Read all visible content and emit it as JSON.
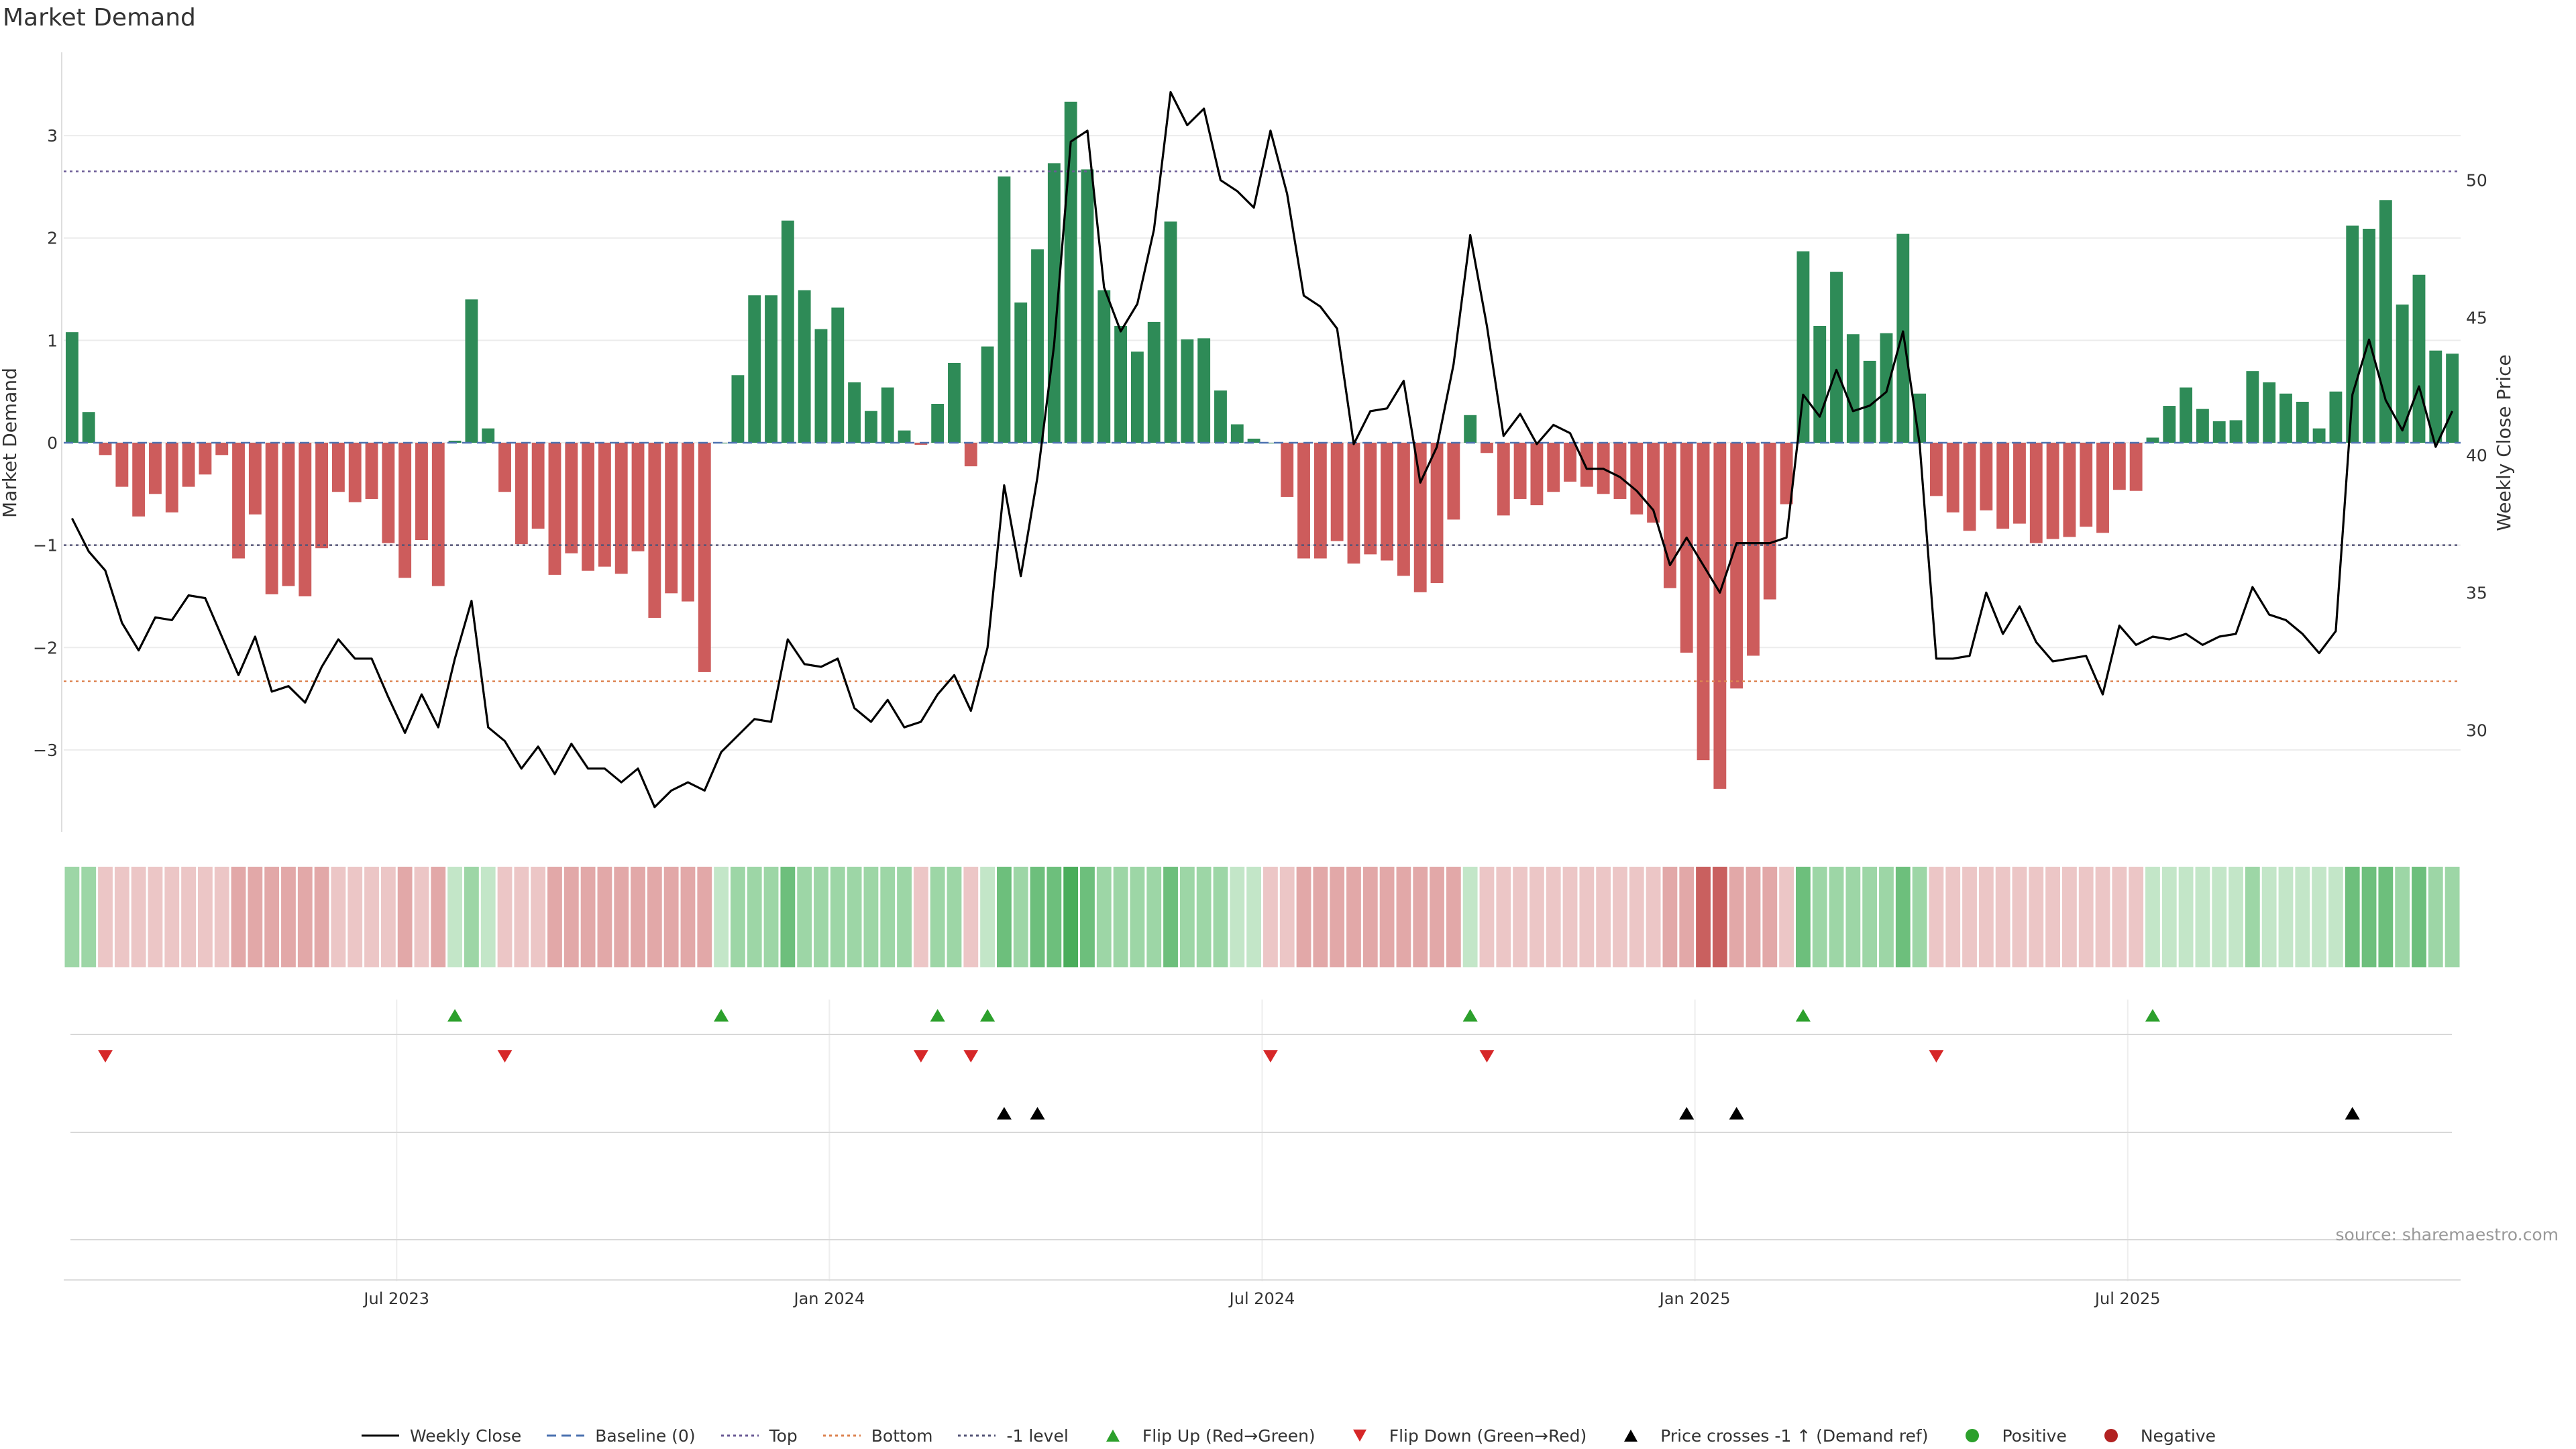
{
  "chart_data": {
    "type": "bar",
    "title": "Market Demand",
    "ylabel": "Market Demand",
    "y2label": "Weekly Close Price",
    "source": "source: sharemaestro.com",
    "ylim": [
      -3.8,
      3.8
    ],
    "y2lim": [
      26.3,
      54.6
    ],
    "yticks": [
      3,
      2,
      1,
      0,
      -1,
      -2,
      -3
    ],
    "ytick_labels": [
      "3",
      "2",
      "1",
      "0",
      "−1",
      "−2",
      "−3"
    ],
    "y2ticks": [
      50,
      45,
      40,
      35,
      30
    ],
    "ytick2_labels": [
      "50",
      "45",
      "40",
      "35",
      "30"
    ],
    "x_labels": [
      "Jul 2023",
      "Jan 2024",
      "Jul 2024",
      "Jan 2025",
      "Jul 2025"
    ],
    "x_label_weeks": [
      20,
      46,
      72,
      98,
      124
    ],
    "levels": {
      "top": 2.65,
      "bottom": -2.33,
      "minus_one": -1
    },
    "demand": [
      1.08,
      0.3,
      -0.12,
      -0.43,
      -0.72,
      -0.5,
      -0.68,
      -0.43,
      -0.31,
      -0.12,
      -1.13,
      -0.7,
      -1.48,
      -1.4,
      -1.5,
      -1.03,
      -0.48,
      -0.58,
      -0.55,
      -0.98,
      -1.32,
      -0.95,
      -1.4,
      0.02,
      1.4,
      0.14,
      -0.48,
      -0.99,
      -0.84,
      -1.29,
      -1.08,
      -1.25,
      -1.21,
      -1.28,
      -1.06,
      -1.71,
      -1.47,
      -1.55,
      -2.24,
      0,
      0.66,
      1.44,
      1.44,
      2.17,
      1.49,
      1.11,
      1.32,
      0.59,
      0.31,
      0.54,
      0.12,
      -0.02,
      0.38,
      0.78,
      -0.23,
      0.94,
      2.6,
      1.37,
      1.89,
      2.73,
      3.33,
      2.67,
      1.49,
      1.14,
      0.89,
      1.18,
      2.16,
      1.01,
      1.02,
      0.51,
      0.18,
      0.04,
      0,
      -0.53,
      -1.13,
      -1.13,
      -0.96,
      -1.18,
      -1.09,
      -1.15,
      -1.3,
      -1.46,
      -1.37,
      -0.75,
      0.27,
      -0.1,
      -0.71,
      -0.55,
      -0.61,
      -0.48,
      -0.38,
      -0.43,
      -0.5,
      -0.55,
      -0.7,
      -0.78,
      -1.42,
      -2.05,
      -3.1,
      -3.38,
      -2.4,
      -2.08,
      -1.53,
      -0.6,
      1.87,
      1.14,
      1.67,
      1.06,
      0.8,
      1.07,
      2.04,
      0.48,
      -0.52,
      -0.68,
      -0.86,
      -0.66,
      -0.84,
      -0.79,
      -0.98,
      -0.94,
      -0.92,
      -0.82,
      -0.88,
      -0.46,
      -0.47,
      0.05,
      0.36,
      0.54,
      0.33,
      0.21,
      0.22,
      0.7,
      0.59,
      0.48,
      0.4,
      0.14,
      0.5,
      2.12,
      2.09,
      2.37,
      1.35,
      1.64,
      0.9,
      0.87
    ],
    "close": [
      37.7,
      36.5,
      35.8,
      33.9,
      32.9,
      34.1,
      34.0,
      34.9,
      34.8,
      33.4,
      32.0,
      33.4,
      31.4,
      31.6,
      31.0,
      32.3,
      33.3,
      32.6,
      32.6,
      31.2,
      29.9,
      31.3,
      30.1,
      32.6,
      34.7,
      30.1,
      29.6,
      28.6,
      29.4,
      28.4,
      29.5,
      28.6,
      28.6,
      28.1,
      28.6,
      27.2,
      27.8,
      28.1,
      27.8,
      29.2,
      29.8,
      30.4,
      30.3,
      33.3,
      32.4,
      32.3,
      32.6,
      30.8,
      30.3,
      31.1,
      30.1,
      30.3,
      31.3,
      32.0,
      30.7,
      33.0,
      38.9,
      35.6,
      39.2,
      44.0,
      51.4,
      51.8,
      46.1,
      44.5,
      45.5,
      48.2,
      53.2,
      52.0,
      52.6,
      50.0,
      49.6,
      49.0,
      51.8,
      49.5,
      45.8,
      45.4,
      44.6,
      40.4,
      41.6,
      41.7,
      42.7,
      39.0,
      40.3,
      43.3,
      48.0,
      44.7,
      40.7,
      41.5,
      40.4,
      41.1,
      40.8,
      39.5,
      39.5,
      39.2,
      38.7,
      38.0,
      36.0,
      37.0,
      36.0,
      35.0,
      36.8,
      36.8,
      36.8,
      37.0,
      42.2,
      41.4,
      43.1,
      41.6,
      41.8,
      42.3,
      44.5,
      40.4,
      32.6,
      32.6,
      32.7,
      35.0,
      33.5,
      34.5,
      33.2,
      32.5,
      32.6,
      32.7,
      31.3,
      33.8,
      33.1,
      33.4,
      33.3,
      33.5,
      33.1,
      33.4,
      33.5,
      35.2,
      34.2,
      34.0,
      33.5,
      32.8,
      33.6,
      42.2,
      44.2,
      42.0,
      40.9,
      42.5,
      40.3,
      41.6
    ],
    "heat": [
      "pg",
      "pg",
      "lr",
      "lr",
      "lr",
      "lr",
      "lr",
      "lr",
      "lr",
      "lr",
      "mr",
      "mr",
      "mr",
      "mr",
      "mr",
      "mr",
      "lr",
      "lr",
      "lr",
      "lr",
      "mr",
      "lr",
      "mr",
      "lg",
      "pg",
      "lg",
      "lr",
      "lr",
      "lr",
      "mr",
      "mr",
      "mr",
      "mr",
      "mr",
      "mr",
      "mr",
      "mr",
      "mr",
      "mr",
      "lg",
      "pg",
      "pg",
      "pg",
      "mg",
      "pg",
      "pg",
      "pg",
      "pg",
      "pg",
      "pg",
      "pg",
      "lr",
      "pg",
      "pg",
      "lr",
      "lg",
      "mg",
      "pg",
      "mg",
      "mg",
      "dg",
      "mg",
      "pg",
      "pg",
      "pg",
      "pg",
      "mg",
      "pg",
      "pg",
      "pg",
      "lg",
      "lg",
      "lr",
      "lr",
      "mr",
      "mr",
      "mr",
      "mr",
      "mr",
      "mr",
      "mr",
      "mr",
      "mr",
      "mr",
      "lg",
      "lr",
      "lr",
      "lr",
      "lr",
      "lr",
      "lr",
      "lr",
      "lr",
      "lr",
      "lr",
      "lr",
      "mr",
      "mr",
      "dr",
      "dr",
      "mr",
      "mr",
      "mr",
      "lr",
      "mg",
      "pg",
      "pg",
      "pg",
      "pg",
      "pg",
      "mg",
      "pg",
      "lr",
      "lr",
      "lr",
      "lr",
      "lr",
      "lr",
      "lr",
      "lr",
      "lr",
      "lr",
      "lr",
      "lr",
      "lr",
      "lg",
      "lg",
      "lg",
      "lg",
      "lg",
      "lg",
      "pg",
      "lg",
      "lg",
      "lg",
      "lg",
      "lg",
      "mg",
      "mg",
      "mg",
      "pg",
      "mg",
      "pg",
      "pg"
    ],
    "heat_palette": {
      "pg": "#9dd6a6",
      "lg": "#c3e6c8",
      "mg": "#6dbf7c",
      "dg": "#4aad5b",
      "lr": "#ecc6c6",
      "mr": "#e2a8a8",
      "dr": "#c9605f"
    },
    "flip_up_weeks": [
      23,
      39,
      52,
      55,
      84,
      104,
      125
    ],
    "flip_down_weeks": [
      2,
      26,
      51,
      54,
      72,
      85,
      112
    ],
    "cross_weeks": [
      56,
      58,
      97,
      100,
      137
    ],
    "colors": {
      "positive_bar": "#2e8b57",
      "negative_bar": "#cd5c5c",
      "close_line": "#000000",
      "baseline": "#4c72b0",
      "top": "#6b5b95",
      "bottom": "#dd8452",
      "minus_one": "#555577",
      "flip_up": "#2ca02c",
      "flip_down": "#d62728",
      "cross": "#000000",
      "positive_dot": "#2ca02c",
      "negative_dot": "#b22222"
    },
    "legend": [
      {
        "label": "Weekly Close",
        "symbol": "line-solid"
      },
      {
        "label": "Baseline (0)",
        "symbol": "line-dashed-blue"
      },
      {
        "label": "Top",
        "symbol": "line-dotted-purple"
      },
      {
        "label": "Bottom",
        "symbol": "line-dotted-orange"
      },
      {
        "label": "-1 level",
        "symbol": "line-dotted-gray"
      },
      {
        "label": "Flip Up (Red→Green)",
        "symbol": "triangle-up-green"
      },
      {
        "label": "Flip Down (Green→Red)",
        "symbol": "triangle-down-red"
      },
      {
        "label": "Price crosses -1 ↑ (Demand ref)",
        "symbol": "triangle-up-black"
      },
      {
        "label": "Positive",
        "symbol": "dot-green"
      },
      {
        "label": "Negative",
        "symbol": "dot-red"
      }
    ]
  }
}
